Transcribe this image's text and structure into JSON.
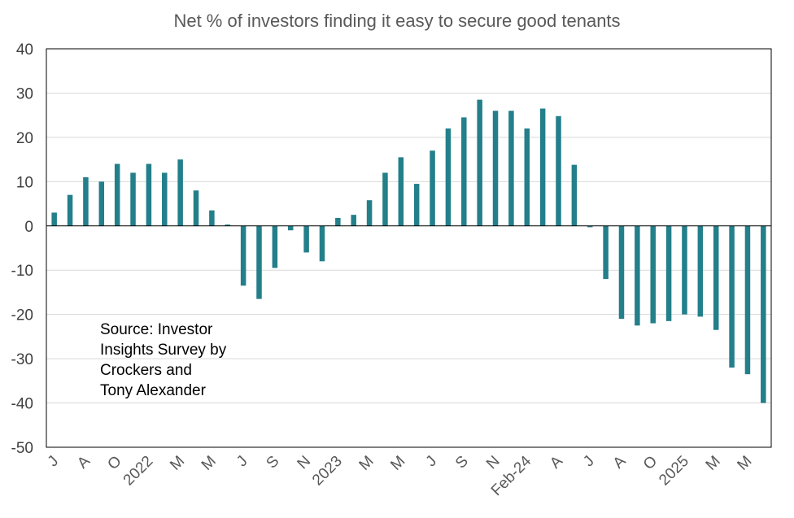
{
  "chart_data": {
    "type": "bar",
    "title": "Net % of investors finding it easy to secure good tenants",
    "xlabel": "",
    "ylabel": "",
    "ylim": [
      -50,
      40
    ],
    "yticks": [
      -50,
      -40,
      -30,
      -20,
      -10,
      0,
      10,
      20,
      30,
      40
    ],
    "grid": true,
    "legend": "none",
    "bar_color": "#237F8A",
    "categories": [
      "J",
      "",
      "A",
      "",
      "O",
      "",
      "2022",
      "",
      "M",
      "",
      "M",
      "",
      "J",
      "",
      "S",
      "",
      "N",
      "",
      "2023",
      "",
      "M",
      "",
      "M",
      "",
      "J",
      "",
      "S",
      "",
      "N",
      "",
      "Feb-24",
      "",
      "A",
      "",
      "J",
      "",
      "A",
      "",
      "O",
      "",
      "2025",
      "",
      "M",
      "",
      "M",
      ""
    ],
    "values": [
      3,
      7,
      11,
      10,
      14,
      12,
      14,
      12,
      15,
      8,
      3.5,
      0.3,
      -13.5,
      -16.5,
      -9.5,
      -1,
      -6,
      -8,
      1.8,
      2.5,
      5.8,
      12,
      15.5,
      9.5,
      17,
      22,
      24.5,
      28.5,
      26,
      26,
      22,
      26.5,
      24.8,
      13.8,
      -0.3,
      -12,
      -21,
      -22.5,
      -22,
      -21.5,
      -20,
      -20.5,
      -23.5,
      -32,
      -33.5,
      -40
    ],
    "annotation": [
      "Source: Investor",
      "Insights Survey by",
      "Crockers and",
      "Tony Alexander"
    ]
  }
}
